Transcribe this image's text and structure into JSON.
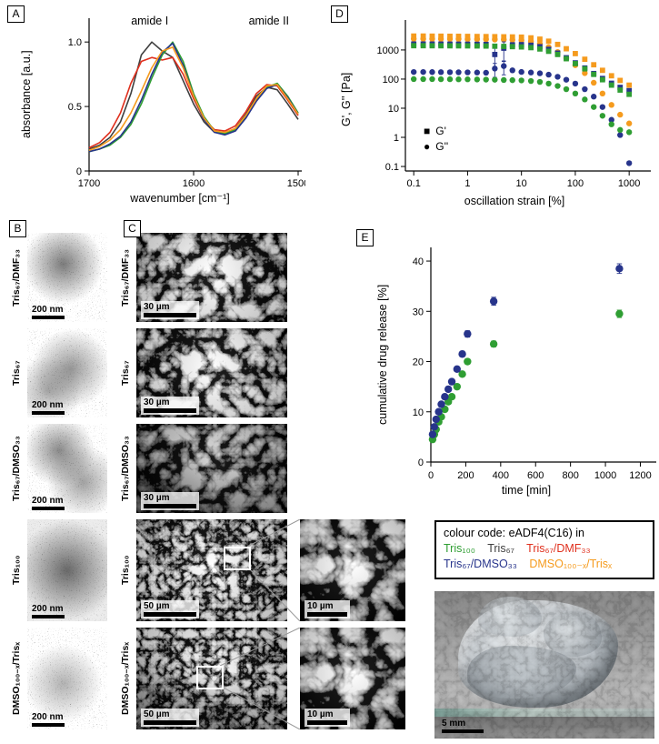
{
  "panels": {
    "a": "A",
    "b": "B",
    "c": "C",
    "d": "D",
    "e": "E"
  },
  "chart_data": [
    {
      "id": "ftir",
      "type": "line",
      "xlabel": "wavenumber [cm⁻¹]",
      "ylabel": "absorbance [a.u.]",
      "xlim": [
        1700,
        1500
      ],
      "ylim": [
        0,
        1.1
      ],
      "xticks": [
        1700,
        1600,
        1500
      ],
      "yticks": [
        0,
        0.5,
        1.0
      ],
      "ytick_labels": [
        "0",
        "0.5",
        "1.0"
      ],
      "annotations": [
        {
          "text": "amide I",
          "x": 1642
        },
        {
          "text": "amide II",
          "x": 1528
        }
      ],
      "series": [
        {
          "name": "Tris₆₇",
          "color": "#3f3f3f",
          "x": [
            1700,
            1690,
            1680,
            1670,
            1660,
            1650,
            1640,
            1630,
            1620,
            1610,
            1600,
            1590,
            1580,
            1570,
            1560,
            1550,
            1540,
            1530,
            1520,
            1510,
            1500
          ],
          "y": [
            0.17,
            0.2,
            0.26,
            0.38,
            0.6,
            0.9,
            1.0,
            0.93,
            0.88,
            0.7,
            0.52,
            0.38,
            0.3,
            0.29,
            0.33,
            0.44,
            0.58,
            0.65,
            0.63,
            0.52,
            0.4
          ]
        },
        {
          "name": "Tris₆₇/DMF₃₃",
          "color": "#e0301e",
          "x": [
            1700,
            1690,
            1680,
            1670,
            1660,
            1650,
            1640,
            1630,
            1620,
            1610,
            1600,
            1590,
            1580,
            1570,
            1560,
            1550,
            1540,
            1530,
            1520,
            1510,
            1500
          ],
          "y": [
            0.18,
            0.22,
            0.3,
            0.45,
            0.68,
            0.85,
            0.88,
            0.86,
            0.88,
            0.75,
            0.56,
            0.4,
            0.32,
            0.31,
            0.35,
            0.46,
            0.6,
            0.67,
            0.66,
            0.55,
            0.43
          ]
        },
        {
          "name": "Tris₁₀₀",
          "color": "#2f9e33",
          "x": [
            1700,
            1690,
            1680,
            1670,
            1660,
            1650,
            1640,
            1630,
            1620,
            1610,
            1600,
            1590,
            1580,
            1570,
            1560,
            1550,
            1540,
            1530,
            1520,
            1510,
            1500
          ],
          "y": [
            0.15,
            0.17,
            0.2,
            0.26,
            0.36,
            0.52,
            0.72,
            0.9,
            1.0,
            0.85,
            0.6,
            0.42,
            0.31,
            0.29,
            0.32,
            0.42,
            0.55,
            0.65,
            0.68,
            0.58,
            0.45
          ]
        },
        {
          "name": "Tris₆₇/DMSO₃₃",
          "color": "#27348b",
          "x": [
            1700,
            1690,
            1680,
            1670,
            1660,
            1650,
            1640,
            1630,
            1620,
            1610,
            1600,
            1590,
            1580,
            1570,
            1560,
            1550,
            1540,
            1530,
            1520,
            1510,
            1500
          ],
          "y": [
            0.15,
            0.17,
            0.21,
            0.27,
            0.38,
            0.55,
            0.75,
            0.92,
            0.99,
            0.82,
            0.58,
            0.4,
            0.3,
            0.28,
            0.31,
            0.41,
            0.54,
            0.64,
            0.67,
            0.57,
            0.44
          ]
        },
        {
          "name": "DMSO₁₀₀₋ₓ/Trisₓ",
          "color": "#f59b1e",
          "x": [
            1700,
            1690,
            1680,
            1670,
            1660,
            1650,
            1640,
            1630,
            1620,
            1610,
            1600,
            1590,
            1580,
            1570,
            1560,
            1550,
            1540,
            1530,
            1520,
            1510,
            1500
          ],
          "y": [
            0.16,
            0.19,
            0.24,
            0.32,
            0.45,
            0.62,
            0.8,
            0.93,
            0.96,
            0.8,
            0.58,
            0.41,
            0.31,
            0.3,
            0.33,
            0.43,
            0.56,
            0.66,
            0.67,
            0.56,
            0.44
          ]
        }
      ]
    },
    {
      "id": "rheology",
      "type": "scatter",
      "xlabel": "oscillation strain [%]",
      "ylabel": "G', G'' [Pa]",
      "xlim": [
        0.07,
        2000
      ],
      "ylim": [
        0.07,
        8000
      ],
      "xscale": "log",
      "yscale": "log",
      "xticks": [
        0.1,
        1,
        10,
        100,
        1000
      ],
      "xtick_labels": [
        "0.1",
        "1",
        "10",
        "100",
        "1000"
      ],
      "yticks": [
        0.1,
        1,
        10,
        100,
        1000
      ],
      "ytick_labels": [
        "0.1",
        "1",
        "10",
        "100",
        "1000"
      ],
      "legend": [
        {
          "symbol": "square",
          "label": "G'"
        },
        {
          "symbol": "circle",
          "label": "G''"
        }
      ],
      "x": [
        0.1,
        0.15,
        0.22,
        0.32,
        0.47,
        0.68,
        1,
        1.5,
        2.2,
        3.2,
        4.7,
        6.8,
        10,
        15,
        22,
        32,
        47,
        68,
        100,
        150,
        220,
        320,
        470,
        680,
        1000
      ],
      "series": [
        {
          "sample": "DMSO₁₀₀₋ₓ/Trisₓ",
          "quantity": "G'",
          "symbol": "square",
          "color": "#f59b1e",
          "err_frac": 0.05,
          "values": [
            3000,
            3000,
            2980,
            2970,
            2950,
            2940,
            2920,
            2900,
            2880,
            2860,
            2830,
            2800,
            2750,
            2600,
            2350,
            2000,
            1550,
            1100,
            750,
            480,
            310,
            200,
            130,
            90,
            62
          ]
        },
        {
          "sample": "DMSO₁₀₀₋ₓ/Trisₓ",
          "quantity": "G''",
          "symbol": "circle",
          "color": "#f59b1e",
          "err_frac": 0.06,
          "values": [
            2400,
            2400,
            2390,
            2380,
            2370,
            2360,
            2340,
            2330,
            2310,
            2280,
            2250,
            2220,
            2150,
            1950,
            1650,
            1250,
            850,
            520,
            300,
            160,
            75,
            32,
            13,
            6,
            3
          ]
        },
        {
          "sample": "Tris₆₇/DMSO₃₃",
          "quantity": "G'",
          "symbol": "square",
          "color": "#27348b",
          "err_frac": 0.12,
          "err_big": {
            "idx": [
              9,
              10
            ],
            "frac": 0.65
          },
          "values": [
            1600,
            1600,
            1595,
            1590,
            1585,
            1580,
            1575,
            1565,
            1550,
            700,
            1150,
            1500,
            1520,
            1450,
            1300,
            1050,
            780,
            540,
            360,
            240,
            155,
            105,
            72,
            52,
            40
          ]
        },
        {
          "sample": "Tris₆₇/DMSO₃₃",
          "quantity": "G''",
          "symbol": "circle",
          "color": "#27348b",
          "err_frac": 0.1,
          "err_big": {
            "idx": [
              9,
              10
            ],
            "frac": 0.5
          },
          "values": [
            175,
            175,
            174,
            173,
            172,
            171,
            170,
            168,
            165,
            230,
            280,
            200,
            176,
            168,
            158,
            142,
            120,
            95,
            70,
            45,
            25,
            11,
            4,
            1.2,
            0.13
          ]
        },
        {
          "sample": "Tris₁₀₀",
          "quantity": "G'",
          "symbol": "square",
          "color": "#2f9e33",
          "err_frac": 0.05,
          "values": [
            1400,
            1400,
            1395,
            1392,
            1388,
            1384,
            1380,
            1372,
            1362,
            1345,
            1325,
            1300,
            1270,
            1200,
            1080,
            900,
            700,
            500,
            340,
            225,
            145,
            95,
            62,
            42,
            30
          ]
        },
        {
          "sample": "Tris₁₀₀",
          "quantity": "G''",
          "symbol": "circle",
          "color": "#2f9e33",
          "err_frac": 0.07,
          "values": [
            100,
            100,
            100,
            99,
            99,
            98,
            98,
            97,
            96,
            95,
            93,
            92,
            90,
            86,
            80,
            70,
            58,
            45,
            32,
            20,
            11,
            5.5,
            2.8,
            1.8,
            1.5
          ]
        }
      ]
    },
    {
      "id": "release",
      "type": "scatter",
      "xlabel": "time [min]",
      "ylabel": "cumulative drug release [%]",
      "xlim": [
        0,
        1260
      ],
      "ylim": [
        0,
        42
      ],
      "xticks": [
        0,
        200,
        400,
        600,
        800,
        1000,
        1200
      ],
      "yticks": [
        0,
        10,
        20,
        30,
        40
      ],
      "x": [
        10,
        20,
        30,
        45,
        60,
        80,
        100,
        120,
        150,
        180,
        210,
        360,
        1080
      ],
      "series": [
        {
          "sample": "Tris₁₀₀",
          "symbol": "circle",
          "color": "#2f9e33",
          "err_frac": 0.025,
          "values": [
            4.5,
            5.5,
            6.5,
            8,
            9,
            10.5,
            12,
            13,
            15,
            17.5,
            20,
            23.5,
            29.5
          ]
        },
        {
          "sample": "Tris₆₇/DMSO₃₃",
          "symbol": "circle",
          "color": "#27348b",
          "err_frac": 0.025,
          "values": [
            5.5,
            7,
            8.5,
            10,
            11.5,
            13,
            14.5,
            16,
            18.5,
            21.5,
            25.5,
            32,
            38.5
          ]
        }
      ]
    }
  ],
  "micro": {
    "rows": [
      {
        "label": "Tris₆₇/DMF₃₃",
        "b_scale": "200 nm",
        "c_scale": "30 µm"
      },
      {
        "label": "Tris₆₇",
        "b_scale": "200 nm",
        "c_scale": "30 µm"
      },
      {
        "label": "Tris₆₇/DMSO₃₃",
        "b_scale": "200 nm",
        "c_scale": "30 µm"
      },
      {
        "label": "Tris₁₀₀",
        "b_scale": "200 nm",
        "c_scale": "50 µm",
        "zoom_scale": "10 µm"
      },
      {
        "label": "DMSO₁₀₀₋ₓ/Trisₓ",
        "b_scale": "200 nm",
        "c_scale": "50 µm",
        "zoom_scale": "10 µm"
      }
    ]
  },
  "colour_code": {
    "title": "colour code: eADF4(C16) in",
    "items": [
      {
        "label": "Tris₁₀₀",
        "color": "#2f9e33"
      },
      {
        "label": "Tris₆₇",
        "color": "#3f3f3f"
      },
      {
        "label": "Tris₆₇/DMF₃₃",
        "color": "#e0301e"
      },
      {
        "label": "Tris₆₇/DMSO₃₃",
        "color": "#27348b"
      },
      {
        "label": "DMSO₁₀₀₋ₓ/Trisₓ",
        "color": "#f59b1e"
      }
    ]
  },
  "photo": {
    "scale_label": "5 mm"
  }
}
